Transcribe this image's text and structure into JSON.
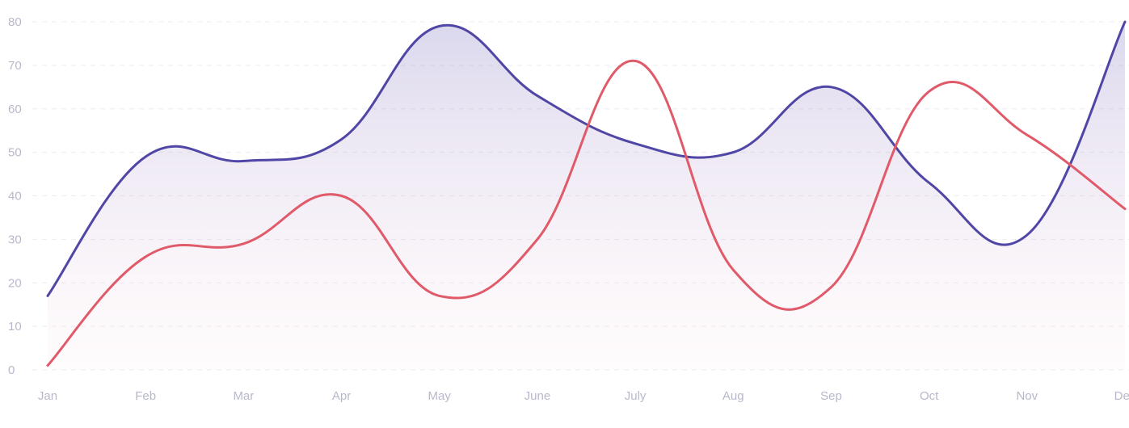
{
  "chart_data": {
    "type": "line",
    "title": "",
    "xlabel": "",
    "ylabel": "",
    "categories": [
      "Jan",
      "Feb",
      "Mar",
      "Apr",
      "May",
      "June",
      "July",
      "Aug",
      "Sep",
      "Oct",
      "Nov",
      "Dec"
    ],
    "ylim": [
      0,
      80
    ],
    "yticks": [
      0,
      10,
      20,
      30,
      40,
      50,
      60,
      70,
      80
    ],
    "grid": true,
    "legend": "none",
    "smooth": true,
    "series": [
      {
        "values": [
          17,
          49,
          48,
          53,
          79,
          63,
          52,
          50,
          65,
          43,
          31,
          80
        ],
        "color": "#4f46a5",
        "area": true,
        "area_color": "#8b84c8"
      },
      {
        "values": [
          1,
          26,
          29,
          40,
          17,
          30,
          71,
          23,
          19,
          64,
          54,
          37
        ],
        "color": "#e05a6a",
        "area": false
      }
    ]
  }
}
